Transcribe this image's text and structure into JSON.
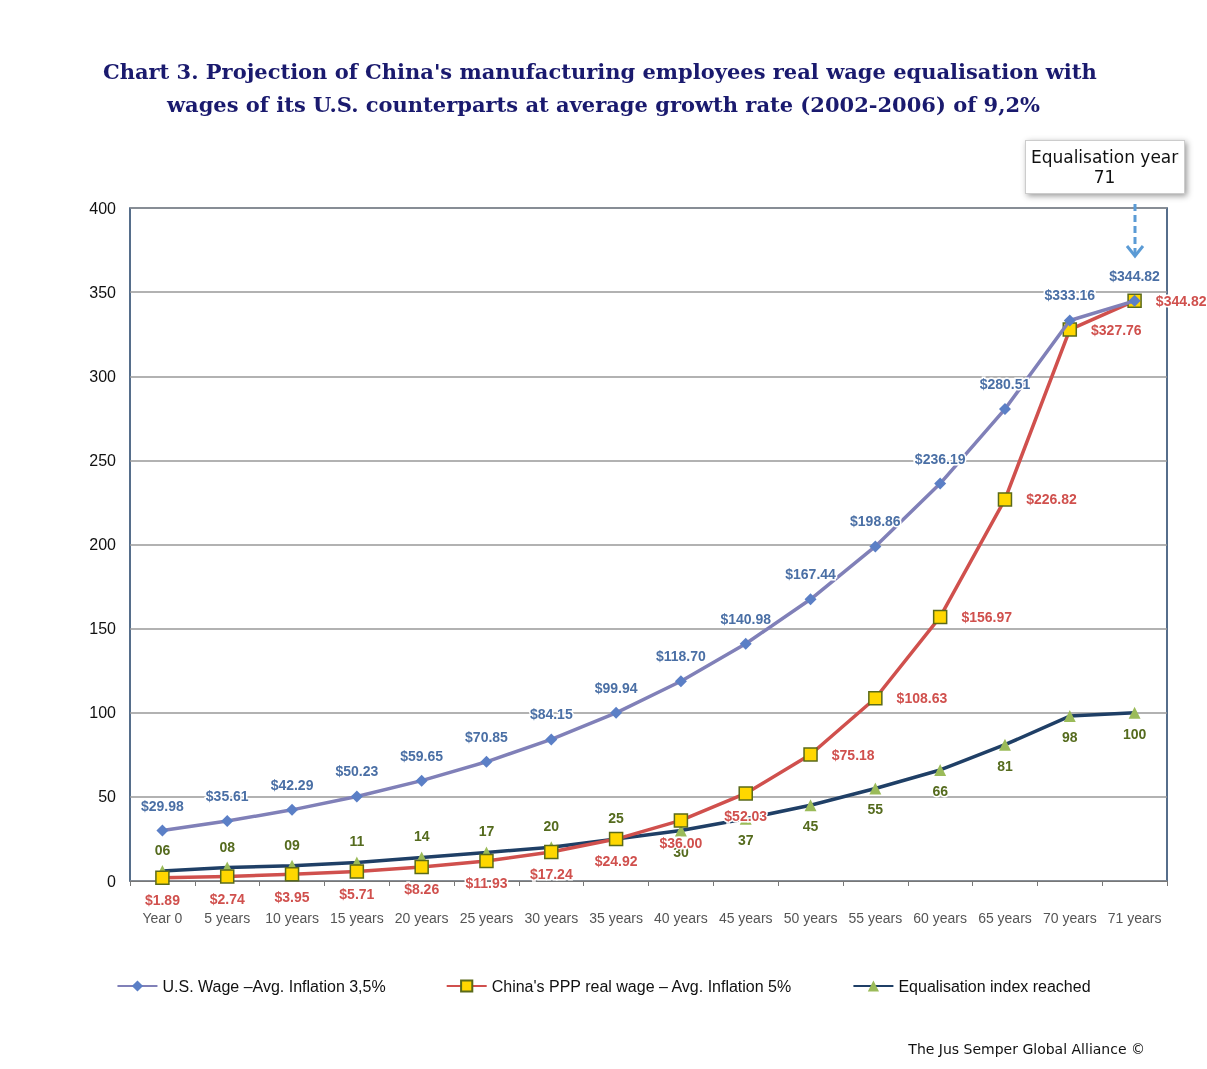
{
  "chart_data": {
    "type": "line",
    "title": "Chart 3. Projection of China's manufacturing employees real wage equalisation with wages of its U.S. counterparts at average growth rate (2002-2006) of 9,2%",
    "categories": [
      "Year 0",
      "5 years",
      "10 years",
      "15 years",
      "20 years",
      "25 years",
      "30 years",
      "35 years",
      "40 years",
      "45 years",
      "50 years",
      "55 years",
      "60 years",
      "65 years",
      "70 years",
      "71 years"
    ],
    "series": [
      {
        "name": "U.S. Wage –Avg. Inflation 3,5%",
        "color": "#8080b8",
        "marker": "diamond",
        "values": [
          29.98,
          35.61,
          42.29,
          50.23,
          59.65,
          70.85,
          84.15,
          99.94,
          118.7,
          140.98,
          167.44,
          198.86,
          236.19,
          280.51,
          333.16,
          344.82
        ],
        "value_labels": [
          "$29.98",
          "$35.61",
          "$42.29",
          "$50.23",
          "$59.65",
          "$70.85",
          "$84.15",
          "$99.94",
          "$118.70",
          "$140.98",
          "$167.44",
          "$198.86",
          "$236.19",
          "$280.51",
          "$333.16",
          "$344.82"
        ]
      },
      {
        "name": "China's PPP real wage – Avg. Inflation 5%",
        "color": "#d0504d",
        "marker": "square",
        "values": [
          1.89,
          2.74,
          3.95,
          5.71,
          8.26,
          11.93,
          17.24,
          24.92,
          36.0,
          52.03,
          75.18,
          108.63,
          156.97,
          226.82,
          327.76,
          344.82
        ],
        "value_labels": [
          "$1.89",
          "$2.74",
          "$3.95",
          "$5.71",
          "$8.26",
          "$11.93",
          "$17.24",
          "$24.92",
          "$36.00",
          "$52.03",
          "$75.18",
          "$108.63",
          "$156.97",
          "$226.82",
          "$327.76",
          "$344.82"
        ]
      },
      {
        "name": "Equalisation index reached",
        "color": "#1f3f66",
        "marker": "triangle",
        "values": [
          6,
          8,
          9,
          11,
          14,
          17,
          20,
          25,
          30,
          37,
          45,
          55,
          66,
          81,
          98,
          100
        ],
        "value_labels": [
          "06",
          "08",
          "09",
          "11",
          "14",
          "17",
          "20",
          "25",
          "30",
          "37",
          "45",
          "55",
          "66",
          "81",
          "98",
          "100"
        ]
      }
    ],
    "ylim": [
      0,
      400
    ],
    "yticks": [
      0,
      50,
      100,
      150,
      200,
      250,
      300,
      350,
      400
    ],
    "grid": "y",
    "legend": "bottom",
    "annotations": [
      "Equalisation year 71",
      "The Jus Semper Global Alliance ©"
    ]
  }
}
